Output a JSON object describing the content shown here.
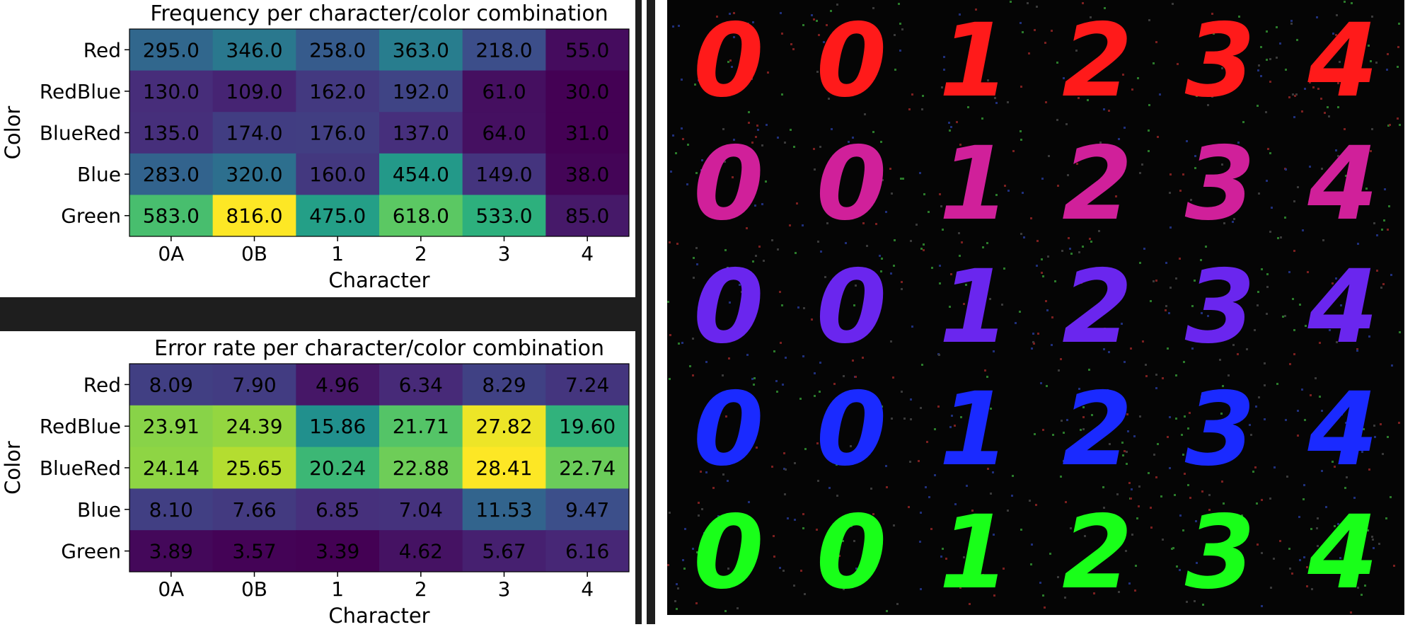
{
  "chart_data": [
    {
      "type": "heatmap",
      "title": "Frequency per character/color combination",
      "xlabel": "Character",
      "ylabel": "Color",
      "x": [
        "0A",
        "0B",
        "1",
        "2",
        "3",
        "4"
      ],
      "y": [
        "Red",
        "RedBlue",
        "BlueRed",
        "Blue",
        "Green"
      ],
      "values": [
        [
          295.0,
          346.0,
          258.0,
          363.0,
          218.0,
          55.0
        ],
        [
          130.0,
          109.0,
          162.0,
          192.0,
          61.0,
          30.0
        ],
        [
          135.0,
          174.0,
          176.0,
          137.0,
          64.0,
          31.0
        ],
        [
          283.0,
          320.0,
          160.0,
          454.0,
          149.0,
          38.0
        ],
        [
          583.0,
          816.0,
          475.0,
          618.0,
          533.0,
          85.0
        ]
      ],
      "value_format": "1dp",
      "colormap": "viridis"
    },
    {
      "type": "heatmap",
      "title": "Error rate per character/color combination",
      "xlabel": "Character",
      "ylabel": "Color",
      "x": [
        "0A",
        "0B",
        "1",
        "2",
        "3",
        "4"
      ],
      "y": [
        "Red",
        "RedBlue",
        "BlueRed",
        "Blue",
        "Green"
      ],
      "values": [
        [
          8.09,
          7.9,
          4.96,
          6.34,
          8.29,
          7.24
        ],
        [
          23.91,
          24.39,
          15.86,
          21.71,
          27.82,
          19.6
        ],
        [
          24.14,
          25.65,
          20.24,
          22.88,
          28.41,
          22.74
        ],
        [
          8.1,
          7.66,
          6.85,
          7.04,
          11.53,
          9.47
        ],
        [
          3.89,
          3.57,
          3.39,
          4.62,
          5.67,
          6.16
        ]
      ],
      "value_format": "2dp",
      "colormap": "viridis"
    }
  ],
  "image_grid": {
    "background": "#050505",
    "row_colors": [
      "#ff1a1a",
      "#d0209a",
      "#6a26ee",
      "#1a2aff",
      "#19ff19"
    ],
    "columns": [
      "0",
      "0",
      "1",
      "2",
      "3",
      "4"
    ]
  }
}
